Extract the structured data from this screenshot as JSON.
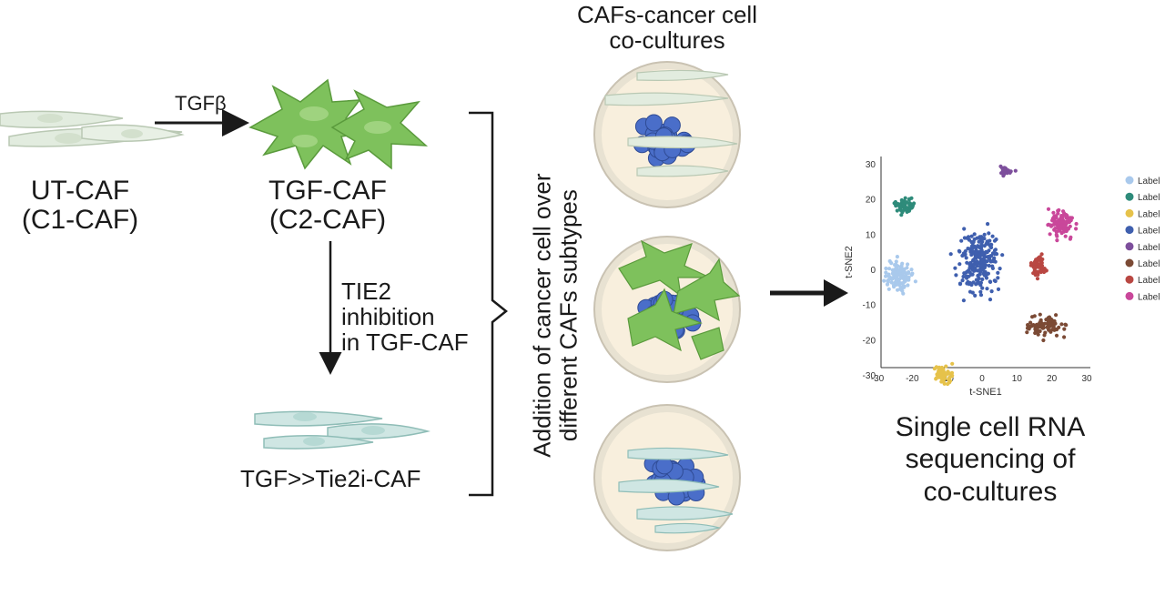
{
  "labels": {
    "tgfb": "TGFβ",
    "ut_caf_line1": "UT-CAF",
    "ut_caf_line2": "(C1-CAF)",
    "tgf_caf_line1": "TGF-CAF",
    "tgf_caf_line2": "(C2-CAF)",
    "tie2_line1": "TIE2",
    "tie2_line2": "inhibition",
    "tie2_line3": "in TGF-CAF",
    "tie2i_caf": "TGF>>Tie2i-CAF",
    "addition_line1": "Addition of cancer cell  over",
    "addition_line2": "different CAFs subtypes",
    "cocult_line1": "CAFs-cancer cell",
    "cocult_line2": "co-cultures",
    "scrna_line1": "Single cell RNA",
    "scrna_line2": "sequencing of",
    "scrna_line3": "co-cultures"
  },
  "tsne": {
    "xlabel": "t-SNE1",
    "ylabel": "t-SNE2",
    "xticks": [
      "-30",
      "-20",
      "-10",
      "0",
      "10",
      "20",
      "30"
    ],
    "yticks": [
      "30",
      "20",
      "10",
      "0",
      "-10",
      "-20",
      "-30"
    ],
    "legend": [
      {
        "label": "Label",
        "color": "#a9c9ec"
      },
      {
        "label": "Label",
        "color": "#2e8b7a"
      },
      {
        "label": "Label",
        "color": "#e6c24a"
      },
      {
        "label": "Label",
        "color": "#3f5fae"
      },
      {
        "label": "Label",
        "color": "#7d4f9c"
      },
      {
        "label": "Label",
        "color": "#7b4a35"
      },
      {
        "label": "Label",
        "color": "#b94742"
      },
      {
        "label": "Label",
        "color": "#c9479a"
      }
    ]
  },
  "colors": {
    "ut_caf": "#e2ecdf",
    "tgf_caf": "#7ec15c",
    "tie2i_caf": "#cfe6e3",
    "cancer_cell": "#4a6ec9",
    "dish_fill": "#f8efdd",
    "dish_rim": "#e8e2d2"
  }
}
